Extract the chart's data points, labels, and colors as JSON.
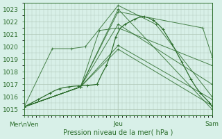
{
  "bg_color": "#d8f0e8",
  "grid_color": "#b0c8b8",
  "line_color": "#2d6e2d",
  "marker_color": "#2d6e2d",
  "ylabel": "Pression niveau de la mer( hPa )",
  "ylim": [
    1014.5,
    1023.5
  ],
  "yticks": [
    1015,
    1016,
    1017,
    1018,
    1019,
    1020,
    1021,
    1022,
    1023
  ],
  "xtick_labels": [
    "Mer\\nVen",
    "Jeu",
    "Sam"
  ],
  "xtick_positions": [
    0,
    2,
    4
  ],
  "x_total": 4.0,
  "lines": [
    {
      "points": [
        [
          0,
          1015.2
        ],
        [
          1.2,
          1016.8
        ],
        [
          2.0,
          1023.0
        ],
        [
          4.0,
          1015.0
        ]
      ]
    },
    {
      "points": [
        [
          0,
          1015.2
        ],
        [
          1.2,
          1016.8
        ],
        [
          2.0,
          1022.8
        ],
        [
          3.8,
          1021.5
        ],
        [
          4.0,
          1019.2
        ]
      ]
    },
    {
      "points": [
        [
          0,
          1015.2
        ],
        [
          1.2,
          1016.8
        ],
        [
          1.6,
          1021.3
        ],
        [
          2.0,
          1021.5
        ],
        [
          4.0,
          1018.5
        ]
      ]
    },
    {
      "points": [
        [
          0,
          1015.2
        ],
        [
          1.2,
          1016.8
        ],
        [
          2.0,
          1021.8
        ],
        [
          4.0,
          1017.0
        ]
      ]
    },
    {
      "points": [
        [
          0,
          1015.2
        ],
        [
          1.2,
          1016.8
        ],
        [
          2.0,
          1020.1
        ],
        [
          4.0,
          1015.8
        ]
      ]
    },
    {
      "points": [
        [
          0,
          1015.2
        ],
        [
          1.2,
          1016.8
        ],
        [
          2.0,
          1019.8
        ],
        [
          4.0,
          1015.3
        ]
      ]
    },
    {
      "points": [
        [
          0,
          1015.2
        ],
        [
          0.6,
          1019.85
        ],
        [
          1.0,
          1019.85
        ],
        [
          1.3,
          1020.0
        ],
        [
          2.0,
          1023.3
        ],
        [
          2.8,
          1021.8
        ],
        [
          4.0,
          1016.0
        ]
      ]
    }
  ],
  "detail_line": {
    "points": [
      [
        0,
        1015.2
      ],
      [
        0.15,
        1015.5
      ],
      [
        0.3,
        1015.8
      ],
      [
        0.45,
        1016.1
      ],
      [
        0.55,
        1016.3
      ],
      [
        0.65,
        1016.5
      ],
      [
        0.75,
        1016.65
      ],
      [
        0.85,
        1016.75
      ],
      [
        0.95,
        1016.8
      ],
      [
        1.05,
        1016.85
      ],
      [
        1.15,
        1016.88
      ],
      [
        1.25,
        1016.9
      ],
      [
        1.35,
        1016.92
      ],
      [
        1.45,
        1016.95
      ],
      [
        1.55,
        1017.0
      ],
      [
        1.65,
        1017.8
      ],
      [
        1.75,
        1018.5
      ],
      [
        1.85,
        1019.5
      ],
      [
        1.95,
        1020.8
      ],
      [
        2.05,
        1021.5
      ],
      [
        2.15,
        1021.8
      ],
      [
        2.25,
        1022.0
      ],
      [
        2.35,
        1022.2
      ],
      [
        2.45,
        1022.35
      ],
      [
        2.55,
        1022.4
      ],
      [
        2.65,
        1022.3
      ],
      [
        2.75,
        1022.1
      ],
      [
        2.85,
        1021.8
      ],
      [
        2.95,
        1021.4
      ],
      [
        3.05,
        1020.8
      ],
      [
        3.15,
        1020.2
      ],
      [
        3.25,
        1019.5
      ],
      [
        3.35,
        1018.8
      ],
      [
        3.45,
        1018.1
      ],
      [
        3.55,
        1017.4
      ],
      [
        3.65,
        1016.8
      ],
      [
        3.75,
        1016.3
      ],
      [
        3.85,
        1015.9
      ],
      [
        3.95,
        1015.5
      ],
      [
        4.0,
        1015.2
      ]
    ]
  }
}
